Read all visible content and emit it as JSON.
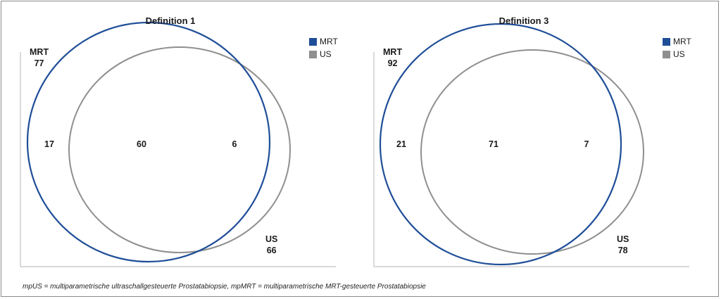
{
  "colors": {
    "mrt": "#1f4e98",
    "us": "#8f8f8f"
  },
  "icons": [
    "legend-square-swatch"
  ],
  "panels": [
    {
      "title": "Definition 1",
      "legend": [
        {
          "label": "MRT"
        },
        {
          "label": "US"
        }
      ],
      "sets": {
        "mrt": {
          "label": "MRT",
          "total": "77"
        },
        "us": {
          "label": "US",
          "total": "66"
        }
      },
      "regions": {
        "mrt_only": "17",
        "both": "60",
        "us_only": "6"
      }
    },
    {
      "title": "Definition 3",
      "legend": [
        {
          "label": "MRT"
        },
        {
          "label": "US"
        }
      ],
      "sets": {
        "mrt": {
          "label": "MRT",
          "total": "92"
        },
        "us": {
          "label": "US",
          "total": "78"
        }
      },
      "regions": {
        "mrt_only": "21",
        "both": "71",
        "us_only": "7"
      }
    }
  ],
  "footnote": "mpUS = multiparametrische ultraschallgesteuerte Prostatabiopsie, mpMRT = multiparametrische MRT-gesteuerte Prostatabiopsie"
}
